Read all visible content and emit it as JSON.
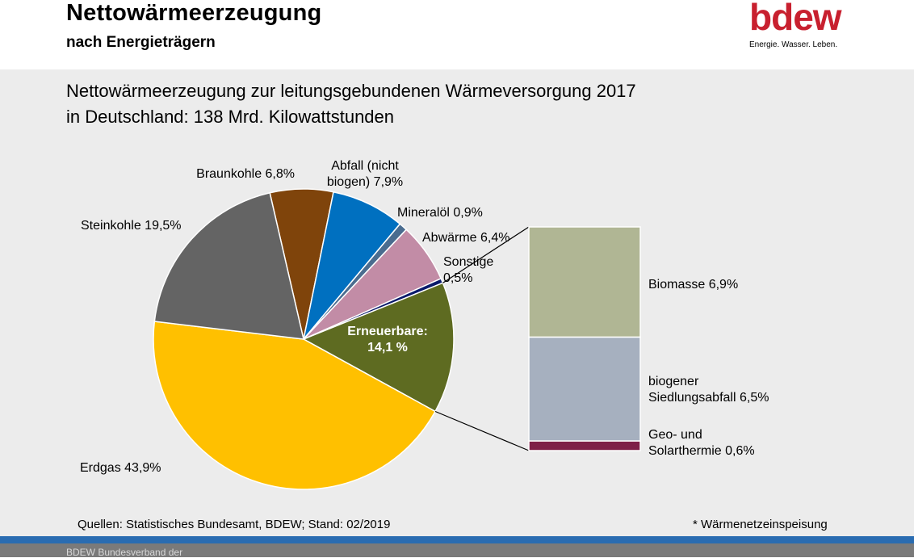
{
  "header": {
    "title": "Nettowärmeerzeugung",
    "subtitle": "nach Energieträgern",
    "logo": "bdew",
    "logo_tagline": "Energie. Wasser. Leben."
  },
  "chart_heading": [
    "Nettowärmeerzeugung zur leitungsgebundenen Wärmeversorgung 2017",
    "in Deutschland: 138 Mrd. Kilowattstunden"
  ],
  "chart_data": {
    "type": "pie",
    "title": "Nettowärmeerzeugung zur leitungsgebundenen Wärmeversorgung 2017 in Deutschland: 138 Mrd. Kilowattstunden",
    "unit": "%",
    "slices": [
      {
        "label": [
          "Braunkohle 6,8%"
        ],
        "value": 6.8,
        "color": "#7f440b"
      },
      {
        "label": [
          "Abfall (nicht",
          "biogen) 7,9%"
        ],
        "value": 7.9,
        "color": "#0070c0"
      },
      {
        "label": [
          "Mineralöl 0,9%"
        ],
        "value": 0.9,
        "color": "#4a6c8f"
      },
      {
        "label": [
          "Abwärme 6,4%"
        ],
        "value": 6.4,
        "color": "#c28ca6"
      },
      {
        "label": [
          "Sonstige",
          "0,5%"
        ],
        "value": 0.5,
        "color": "#0a1a6b"
      },
      {
        "label": [
          "Erneuerbare:",
          "14,1 %"
        ],
        "value": 14.1,
        "color": "#5e6b21",
        "inside": true
      },
      {
        "label": [
          "Erdgas 43,9%"
        ],
        "value": 43.9,
        "color": "#ffc000"
      },
      {
        "label": [
          "Steinkohle 19,5%"
        ],
        "value": 19.5,
        "color": "#646464"
      }
    ],
    "breakdown": {
      "of": "Erneuerbare",
      "segments": [
        {
          "label": [
            "Biomasse 6,9%"
          ],
          "value": 6.9,
          "color": "#b0b694"
        },
        {
          "label": [
            "biogener",
            "Siedlungsabfall 6,5%"
          ],
          "value": 6.5,
          "color": "#a6b0bf"
        },
        {
          "label": [
            "Geo- und",
            "Solarthermie 0,6%"
          ],
          "value": 0.6,
          "color": "#7e1f47"
        }
      ]
    }
  },
  "footer": {
    "source": "Quellen: Statistisches Bundesamt, BDEW; Stand: 02/2019",
    "note": "* Wärmenetzeinspeisung",
    "org": "BDEW Bundesverband der"
  }
}
